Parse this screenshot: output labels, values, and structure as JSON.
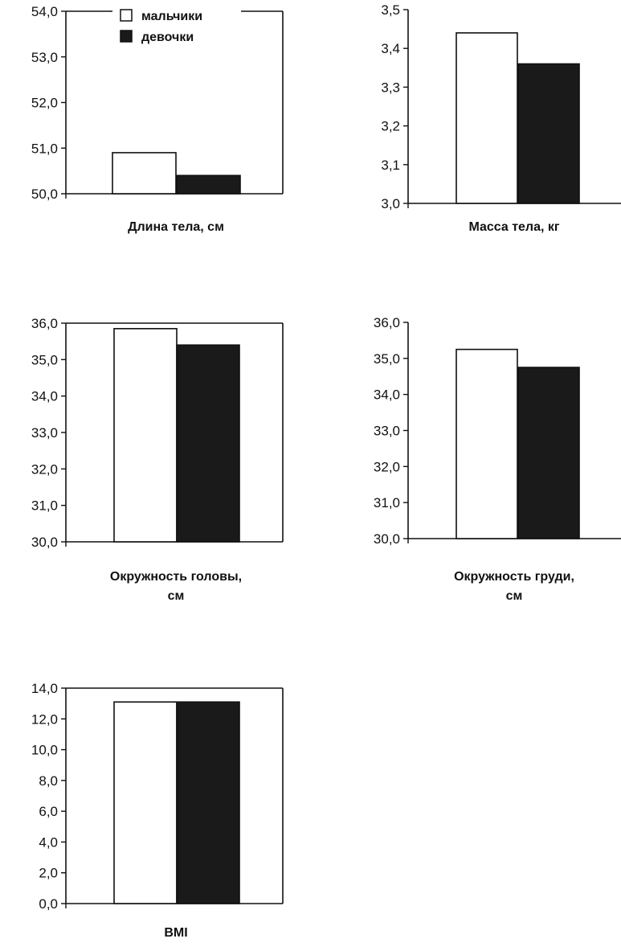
{
  "legend": [
    {
      "label": "мальчики",
      "color": "#ffffff"
    },
    {
      "label": "девочки",
      "color": "#1a1a1a"
    }
  ],
  "chart_data": [
    {
      "type": "bar",
      "title": "",
      "xlabel": [
        "Длина тела, см"
      ],
      "ylim": [
        50.0,
        54.0
      ],
      "yticks": [
        "50,0",
        "51,0",
        "52,0",
        "53,0",
        "54,0"
      ],
      "series": [
        {
          "name": "мальчики",
          "values": [
            50.9
          ]
        },
        {
          "name": "девочки",
          "values": [
            50.4
          ]
        }
      ]
    },
    {
      "type": "bar",
      "title": "",
      "xlabel": [
        "Масса тела, кг"
      ],
      "ylim": [
        3.0,
        3.5
      ],
      "yticks": [
        "3,0",
        "3,1",
        "3,2",
        "3,3",
        "3,4",
        "3,5"
      ],
      "series": [
        {
          "name": "мальчики",
          "values": [
            3.44
          ]
        },
        {
          "name": "девочки",
          "values": [
            3.36
          ]
        }
      ]
    },
    {
      "type": "bar",
      "title": "",
      "xlabel": [
        "Окружность головы,",
        "см"
      ],
      "ylim": [
        30.0,
        36.0
      ],
      "yticks": [
        "30,0",
        "31,0",
        "32,0",
        "33,0",
        "34,0",
        "35,0",
        "36,0"
      ],
      "series": [
        {
          "name": "мальчики",
          "values": [
            35.85
          ]
        },
        {
          "name": "девочки",
          "values": [
            35.4
          ]
        }
      ]
    },
    {
      "type": "bar",
      "title": "",
      "xlabel": [
        "Окружность груди,",
        "см"
      ],
      "ylim": [
        30.0,
        36.0
      ],
      "yticks": [
        "30,0",
        "31,0",
        "32,0",
        "33,0",
        "34,0",
        "35,0",
        "36,0"
      ],
      "series": [
        {
          "name": "мальчики",
          "values": [
            35.25
          ]
        },
        {
          "name": "девочки",
          "values": [
            34.75
          ]
        }
      ]
    },
    {
      "type": "bar",
      "title": "",
      "xlabel": [
        "BMI"
      ],
      "ylim": [
        0.0,
        14.0
      ],
      "yticks": [
        "0,0",
        "2,0",
        "4,0",
        "6,0",
        "8,0",
        "10,0",
        "12,0",
        "14,0"
      ],
      "series": [
        {
          "name": "мальчики",
          "values": [
            13.1
          ]
        },
        {
          "name": "девочки",
          "values": [
            13.1
          ]
        }
      ]
    }
  ]
}
